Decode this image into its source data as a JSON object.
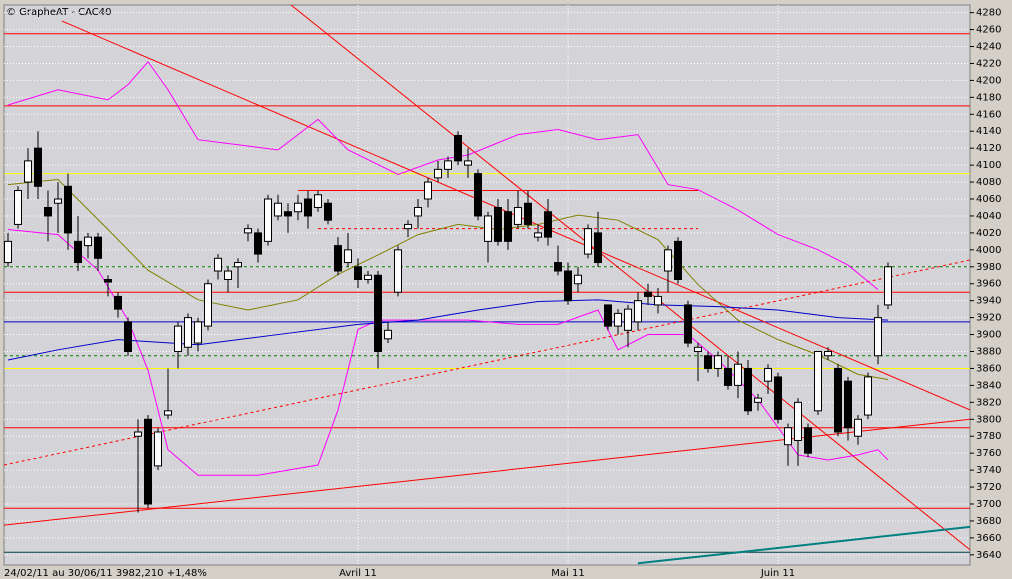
{
  "chart_data": {
    "type": "candlestick",
    "title": "© GrapheAT - CAC40",
    "footer": "24/02/11 au 30/06/11  3982,210  +1,48%",
    "xlim": [
      -0.4,
      96.2
    ],
    "ylim": [
      3628,
      4289
    ],
    "yticks": [
      3640,
      3660,
      3680,
      3700,
      3720,
      3740,
      3760,
      3780,
      3800,
      3820,
      3840,
      3860,
      3880,
      3900,
      3920,
      3940,
      3960,
      3980,
      4000,
      4020,
      4040,
      4060,
      4080,
      4100,
      4120,
      4140,
      4160,
      4180,
      4200,
      4220,
      4240,
      4260,
      4280
    ],
    "xticks": [
      {
        "value": 35,
        "label": "Avril 11"
      },
      {
        "value": 56,
        "label": "Mai 11"
      },
      {
        "value": 77,
        "label": "Juin 11"
      }
    ],
    "grid": true,
    "up_color": "#ffffff",
    "down_color": "#000000",
    "candles": [
      [
        3985,
        4020,
        3980,
        4010
      ],
      [
        4030,
        4075,
        4025,
        4070
      ],
      [
        4080,
        4120,
        4060,
        4105
      ],
      [
        4120,
        4140,
        4060,
        4075
      ],
      [
        4050,
        4070,
        4010,
        4040
      ],
      [
        4055,
        4080,
        4020,
        4060
      ],
      [
        4075,
        4090,
        4000,
        4020
      ],
      [
        4010,
        4040,
        3975,
        3985
      ],
      [
        4005,
        4020,
        3990,
        4015
      ],
      [
        4015,
        4020,
        3975,
        3990
      ],
      [
        3965,
        3970,
        3945,
        3962
      ],
      [
        3945,
        3950,
        3920,
        3930
      ],
      [
        3915,
        3920,
        3875,
        3880
      ],
      [
        3780,
        3800,
        3690,
        3785
      ],
      [
        3800,
        3805,
        3695,
        3700
      ],
      [
        3745,
        3790,
        3740,
        3785
      ],
      [
        3805,
        3860,
        3800,
        3810
      ],
      [
        3880,
        3915,
        3860,
        3910
      ],
      [
        3885,
        3925,
        3875,
        3920
      ],
      [
        3890,
        3920,
        3880,
        3915
      ],
      [
        3910,
        3965,
        3905,
        3960
      ],
      [
        3975,
        3995,
        3965,
        3990
      ],
      [
        3965,
        3980,
        3950,
        3975
      ],
      [
        3980,
        3990,
        3955,
        3985
      ],
      [
        4020,
        4030,
        4010,
        4025
      ],
      [
        4020,
        4025,
        3985,
        3995
      ],
      [
        4010,
        4065,
        4005,
        4060
      ],
      [
        4040,
        4065,
        4035,
        4055
      ],
      [
        4045,
        4055,
        4020,
        4040
      ],
      [
        4045,
        4065,
        4035,
        4055
      ],
      [
        4060,
        4070,
        4025,
        4040
      ],
      [
        4050,
        4070,
        4045,
        4065
      ],
      [
        4055,
        4060,
        4030,
        4035
      ],
      [
        4005,
        4015,
        3970,
        3975
      ],
      [
        3985,
        4020,
        3980,
        4000
      ],
      [
        3980,
        3990,
        3955,
        3965
      ],
      [
        3965,
        3975,
        3960,
        3970
      ],
      [
        3970,
        3975,
        3860,
        3880
      ],
      [
        3895,
        3915,
        3890,
        3905
      ],
      [
        3950,
        4005,
        3945,
        4000
      ],
      [
        4025,
        4035,
        4015,
        4030
      ],
      [
        4040,
        4060,
        4025,
        4050
      ],
      [
        4060,
        4085,
        4050,
        4080
      ],
      [
        4085,
        4105,
        4080,
        4095
      ],
      [
        4095,
        4110,
        4085,
        4105
      ],
      [
        4135,
        4140,
        4100,
        4105
      ],
      [
        4100,
        4120,
        4085,
        4105
      ],
      [
        4090,
        4095,
        4035,
        4040
      ],
      [
        4010,
        4045,
        3985,
        4040
      ],
      [
        4050,
        4060,
        4005,
        4010
      ],
      [
        4045,
        4060,
        4000,
        4010
      ],
      [
        4030,
        4070,
        4025,
        4050
      ],
      [
        4055,
        4070,
        4025,
        4030
      ],
      [
        4015,
        4030,
        4010,
        4020
      ],
      [
        4045,
        4060,
        4005,
        4015
      ],
      [
        3985,
        4005,
        3970,
        3975
      ],
      [
        3975,
        3985,
        3935,
        3940
      ],
      [
        3960,
        3980,
        3950,
        3970
      ],
      [
        3995,
        4030,
        3990,
        4025
      ],
      [
        4020,
        4045,
        3980,
        3985
      ],
      [
        3935,
        3935,
        3905,
        3910
      ],
      [
        3910,
        3930,
        3900,
        3925
      ],
      [
        3905,
        3935,
        3885,
        3930
      ],
      [
        3915,
        3950,
        3905,
        3940
      ],
      [
        3950,
        3960,
        3935,
        3945
      ],
      [
        3935,
        3955,
        3925,
        3945
      ],
      [
        3975,
        4005,
        3950,
        4000
      ],
      [
        4010,
        4015,
        3960,
        3965
      ],
      [
        3935,
        3940,
        3885,
        3890
      ],
      [
        3880,
        3890,
        3845,
        3885
      ],
      [
        3875,
        3880,
        3855,
        3860
      ],
      [
        3860,
        3880,
        3850,
        3875
      ],
      [
        3860,
        3875,
        3835,
        3840
      ],
      [
        3840,
        3880,
        3825,
        3865
      ],
      [
        3860,
        3870,
        3805,
        3810
      ],
      [
        3820,
        3830,
        3810,
        3825
      ],
      [
        3845,
        3865,
        3830,
        3860
      ],
      [
        3850,
        3855,
        3795,
        3800
      ],
      [
        3770,
        3795,
        3745,
        3790
      ],
      [
        3775,
        3825,
        3745,
        3820
      ],
      [
        3790,
        3795,
        3755,
        3760
      ],
      [
        3810,
        3880,
        3805,
        3880
      ],
      [
        3875,
        3885,
        3870,
        3880
      ],
      [
        3860,
        3865,
        3780,
        3785
      ],
      [
        3845,
        3850,
        3775,
        3790
      ],
      [
        3780,
        3805,
        3770,
        3800
      ],
      [
        3805,
        3855,
        3800,
        3850
      ],
      [
        3875,
        3935,
        3865,
        3920
      ],
      [
        3935,
        3985,
        3930,
        3980
      ]
    ],
    "hlines": [
      {
        "value": 4255,
        "color": "#ff0000"
      },
      {
        "value": 4170,
        "color": "#ff0000"
      },
      {
        "value": 4090,
        "color": "#ffff00"
      },
      {
        "value": 3980,
        "color": "#008000",
        "dash": true
      },
      {
        "value": 3950,
        "color": "#ff0000"
      },
      {
        "value": 3915,
        "color": "#0000cc"
      },
      {
        "value": 3875,
        "color": "#008000",
        "dash": true
      },
      {
        "value": 3860,
        "color": "#ffff00"
      },
      {
        "value": 3790,
        "color": "#ff0000"
      },
      {
        "value": 3695,
        "color": "#ff0000"
      },
      {
        "value": 3643,
        "color": "#004040"
      }
    ],
    "segments": [
      {
        "x": [
          29,
          69
        ],
        "values": [
          4070,
          4070
        ],
        "color": "#ff0000"
      },
      {
        "x": [
          31,
          69
        ],
        "values": [
          4025,
          4025
        ],
        "color": "#ff0000",
        "dash": true
      },
      {
        "x": [
          5.4,
          96.2
        ],
        "values": [
          4270,
          3811
        ],
        "color": "#ff0000"
      },
      {
        "x": [
          28.2,
          96.2
        ],
        "values": [
          4290,
          3646
        ],
        "color": "#ff0000"
      },
      {
        "x": [
          -0.4,
          96.2
        ],
        "values": [
          3675,
          3800
        ],
        "color": "#ff0000"
      },
      {
        "x": [
          -0.4,
          96.2
        ],
        "values": [
          3746,
          3988
        ],
        "color": "#ff0000",
        "dash": true
      },
      {
        "x": [
          63,
          96.2
        ],
        "values": [
          3630,
          3673
        ],
        "color": "#008080",
        "width": 2
      }
    ],
    "curves": [
      {
        "color": "#ff00ff",
        "x": [
          0,
          5,
          10,
          12,
          14,
          16,
          19,
          23,
          27,
          31,
          34,
          39,
          43,
          46,
          51,
          55,
          59,
          63,
          66,
          69,
          73,
          77,
          81,
          84,
          87
        ],
        "values": [
          4171,
          4189,
          4177,
          4195,
          4222,
          4189,
          4130,
          4124,
          4118,
          4154,
          4118,
          4089,
          4106,
          4112,
          4136,
          4142,
          4130,
          4136,
          4077,
          4071,
          4047,
          4018,
          4000,
          3982,
          3953
        ]
      },
      {
        "color": "#ff00ff",
        "x": [
          0,
          5,
          9,
          12,
          14,
          16,
          19,
          25,
          31,
          33,
          35,
          37,
          41,
          46,
          51,
          55,
          59,
          61,
          64,
          68,
          71,
          75,
          79,
          82,
          85,
          87,
          88
        ],
        "values": [
          4024,
          4018,
          3976,
          3917,
          3858,
          3764,
          3734,
          3734,
          3746,
          3811,
          3906,
          3917,
          3917,
          3917,
          3912,
          3912,
          3929,
          3882,
          3900,
          3900,
          3870,
          3823,
          3758,
          3752,
          3758,
          3764,
          3752
        ]
      },
      {
        "color": "#808000",
        "x": [
          0,
          5,
          10,
          14,
          19,
          24,
          29,
          33,
          37,
          41,
          45,
          49,
          53,
          57,
          61,
          65,
          69,
          73,
          77,
          81,
          85,
          88
        ],
        "values": [
          4077,
          4083,
          4024,
          3976,
          3941,
          3929,
          3941,
          3971,
          3994,
          4018,
          4030,
          4024,
          4030,
          4041,
          4035,
          4012,
          3959,
          3917,
          3894,
          3876,
          3853,
          3847
        ]
      },
      {
        "color": "#0000cc",
        "x": [
          0,
          5,
          11,
          19,
          27,
          35,
          41,
          47,
          53,
          59,
          65,
          71,
          77,
          83,
          88
        ],
        "values": [
          3870,
          3882,
          3894,
          3888,
          3900,
          3912,
          3917,
          3929,
          3939,
          3941,
          3935,
          3933,
          3929,
          3920,
          3917
        ]
      }
    ]
  }
}
